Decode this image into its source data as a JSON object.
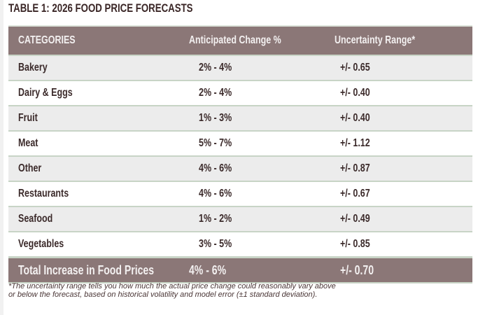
{
  "title": "TABLE 1: 2026 FOOD PRICE FORECASTS",
  "table": {
    "headers": [
      "CATEGORIES",
      "Anticipated Change %",
      "Uncertainty Range*"
    ],
    "rows": [
      {
        "category": "Bakery",
        "change": "2% - 4%",
        "uncertainty": "+/- 0.65"
      },
      {
        "category": "Dairy & Eggs",
        "change": "2% - 4%",
        "uncertainty": "+/- 0.40"
      },
      {
        "category": "Fruit",
        "change": "1% - 3%",
        "uncertainty": "+/- 0.40"
      },
      {
        "category": "Meat",
        "change": "5% - 7%",
        "uncertainty": "+/- 1.12"
      },
      {
        "category": "Other",
        "change": "4% - 6%",
        "uncertainty": "+/- 0.87"
      },
      {
        "category": "Restaurants",
        "change": "4% - 6%",
        "uncertainty": "+/- 0.67"
      },
      {
        "category": "Seafood",
        "change": "1% - 2%",
        "uncertainty": "+/- 0.49"
      },
      {
        "category": "Vegetables",
        "change": "3% - 5%",
        "uncertainty": "+/- 0.85"
      }
    ],
    "total": {
      "category": "Total Increase in Food Prices",
      "change": "4% - 6%",
      "uncertainty": "+/- 0.70"
    }
  },
  "footnote": {
    "line1": "*The uncertainty range tells you how much the actual price change could reasonably vary above",
    "line2": "or below the forecast, based on historical volatility and model error (±1 standard deviation)."
  },
  "colors": {
    "header_bg": "#8b7777",
    "row_alt_bg": "#ececec",
    "separator": "#c8d4c6",
    "text": "#3b2a2a"
  }
}
